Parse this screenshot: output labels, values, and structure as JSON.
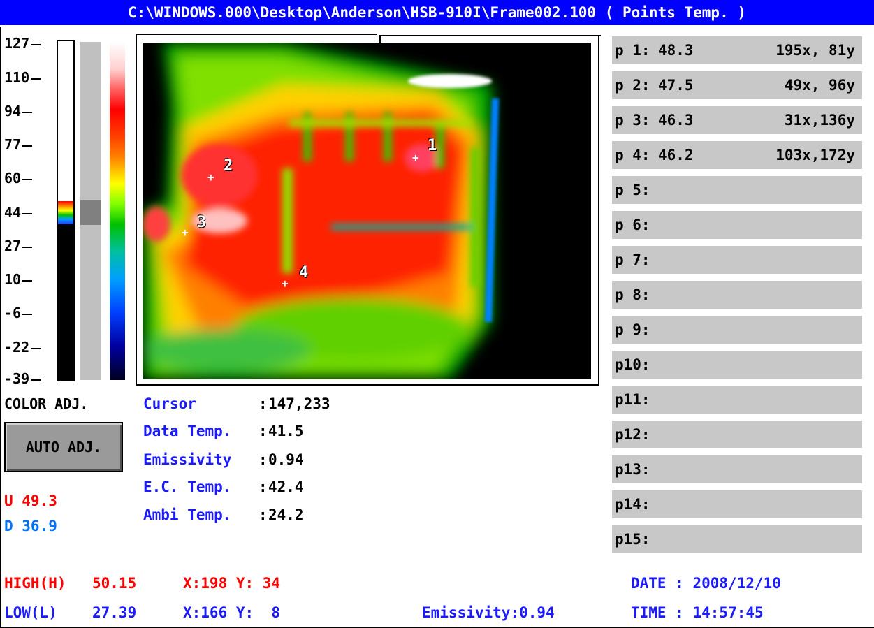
{
  "window": {
    "title": "C:\\WINDOWS.000\\Desktop\\Anderson\\HSB-910I\\Frame002.100 ( Points Temp. )"
  },
  "scale": {
    "ticks": [
      "127",
      "110",
      "94",
      "77",
      "60",
      "44",
      "27",
      "10",
      "-6",
      "-22",
      "-39"
    ]
  },
  "image": {
    "markers": [
      {
        "label": "1"
      },
      {
        "label": "2"
      },
      {
        "label": "3"
      },
      {
        "label": "4"
      }
    ],
    "cursor_glyph": "+"
  },
  "controls": {
    "color_adj_label": "COLOR ADJ.",
    "auto_adj_label": "AUTO ADJ.",
    "u_value": "U 49.3",
    "d_value": "D 36.9"
  },
  "info": {
    "cursor_label": "Cursor",
    "cursor_value": "147,233",
    "data_temp_label": "Data Temp.",
    "data_temp_value": "41.5",
    "emissivity_label": "Emissivity",
    "emissivity_value": "0.94",
    "ec_temp_label": "E.C. Temp.",
    "ec_temp_value": "42.4",
    "ambi_temp_label": "Ambi Temp.",
    "ambi_temp_value": "24.2"
  },
  "points": [
    {
      "label": "p 1:",
      "temp": "48.3",
      "xy": "195x, 81y"
    },
    {
      "label": "p 2:",
      "temp": "47.5",
      "xy": "49x, 96y"
    },
    {
      "label": "p 3:",
      "temp": "46.3",
      "xy": "31x,136y"
    },
    {
      "label": "p 4:",
      "temp": "46.2",
      "xy": "103x,172y"
    },
    {
      "label": "p 5:",
      "temp": "",
      "xy": ""
    },
    {
      "label": "p 6:",
      "temp": "",
      "xy": ""
    },
    {
      "label": "p 7:",
      "temp": "",
      "xy": ""
    },
    {
      "label": "p 8:",
      "temp": "",
      "xy": ""
    },
    {
      "label": "p 9:",
      "temp": "",
      "xy": ""
    },
    {
      "label": "p10:",
      "temp": "",
      "xy": ""
    },
    {
      "label": "p11:",
      "temp": "",
      "xy": ""
    },
    {
      "label": "p12:",
      "temp": "",
      "xy": ""
    },
    {
      "label": "p13:",
      "temp": "",
      "xy": ""
    },
    {
      "label": "p14:",
      "temp": "",
      "xy": ""
    },
    {
      "label": "p15:",
      "temp": "",
      "xy": ""
    }
  ],
  "status": {
    "high_label": "HIGH(H)",
    "high_value": "50.15",
    "high_xy": "X:198 Y: 34",
    "low_label": "LOW(L)",
    "low_value": "27.39",
    "low_xy": "X:166 Y:  8",
    "emissivity": "Emissivity:0.94",
    "date": "DATE : 2008/12/10",
    "time": "TIME : 14:57:45"
  },
  "colors": {
    "titlebar": "#0000ff",
    "label_blue": "#1a1aff",
    "alert_red": "#ff0000",
    "point_row_gray": "#c8c8c8"
  }
}
